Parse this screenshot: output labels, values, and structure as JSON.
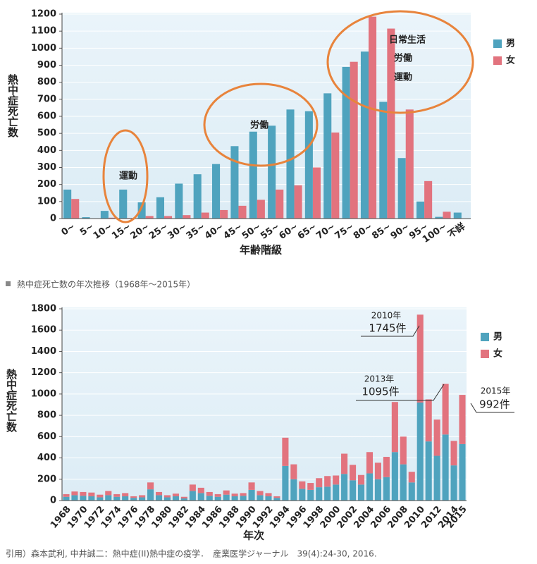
{
  "caption": "熱中症死亡数の年次推移（1968年～2015年）",
  "citation": "引用）森本武利, 中井誠二：熱中症(II)熱中症の疫学．　産業医学ジャーナル　39(4):24-30, 2016.",
  "chart_data": [
    {
      "type": "bar",
      "stacked": false,
      "ylabel": "熱中症死亡数",
      "xlabel": "年齢階級",
      "categories": [
        "0~",
        "5~",
        "10~",
        "15~",
        "20~",
        "25~",
        "30~",
        "35~",
        "40~",
        "45~",
        "50~",
        "55~",
        "60~",
        "65~",
        "70~",
        "75~",
        "80~",
        "85~",
        "90~",
        "95~",
        "100~",
        "不詳"
      ],
      "series": [
        {
          "name": "男",
          "color": "#4fa3be",
          "values": [
            170,
            8,
            45,
            170,
            95,
            125,
            205,
            260,
            320,
            425,
            510,
            545,
            640,
            630,
            735,
            890,
            980,
            685,
            355,
            100,
            10,
            35
          ]
        },
        {
          "name": "女",
          "color": "#e2737e",
          "values": [
            115,
            0,
            5,
            3,
            15,
            15,
            20,
            35,
            50,
            75,
            110,
            170,
            195,
            300,
            505,
            920,
            1185,
            1115,
            640,
            220,
            40,
            0
          ]
        }
      ],
      "ylim": [
        0,
        1200
      ],
      "yticks": [
        0,
        100,
        200,
        300,
        400,
        500,
        600,
        700,
        800,
        900,
        1000,
        1100,
        1200
      ],
      "grid": true,
      "legend": "right",
      "annotations": [
        "運動",
        "労働",
        "日常生活",
        "労働",
        "運動"
      ]
    },
    {
      "type": "bar",
      "stacked": true,
      "ylabel": "熱中症死亡数",
      "xlabel": "年次",
      "categories": [
        "1968",
        null,
        "1970",
        null,
        "1972",
        null,
        "1974",
        null,
        "1976",
        null,
        "1978",
        null,
        "1980",
        null,
        "1982",
        null,
        "1984",
        null,
        "1986",
        null,
        "1988",
        null,
        "1990",
        null,
        "1992",
        null,
        "1994",
        null,
        "1996",
        null,
        "1998",
        null,
        "2000",
        null,
        "2002",
        null,
        "2004",
        null,
        "2006",
        null,
        "2008",
        null,
        "2010",
        null,
        "2012",
        null,
        "2014",
        "2015"
      ],
      "series": [
        {
          "name": "男",
          "color": "#4fa3be",
          "values": [
            35,
            50,
            45,
            40,
            30,
            50,
            35,
            40,
            25,
            30,
            105,
            50,
            30,
            40,
            20,
            90,
            70,
            45,
            35,
            55,
            40,
            45,
            100,
            50,
            40,
            25,
            325,
            200,
            110,
            100,
            125,
            130,
            150,
            250,
            190,
            150,
            255,
            200,
            220,
            455,
            340,
            170,
            920,
            555,
            420,
            620,
            330,
            530
          ]
        },
        {
          "name": "女",
          "color": "#e2737e",
          "values": [
            25,
            35,
            35,
            35,
            25,
            40,
            25,
            30,
            15,
            20,
            65,
            30,
            20,
            25,
            15,
            60,
            50,
            35,
            25,
            40,
            25,
            25,
            70,
            40,
            30,
            15,
            265,
            140,
            70,
            65,
            85,
            100,
            85,
            190,
            145,
            90,
            200,
            155,
            190,
            470,
            260,
            100,
            825,
            395,
            340,
            475,
            230,
            462
          ]
        }
      ],
      "ylim": [
        0,
        1800
      ],
      "yticks": [
        0,
        200,
        400,
        600,
        800,
        1000,
        1200,
        1400,
        1600,
        1800
      ],
      "grid": true,
      "legend": "right",
      "annotations": [
        "2010年",
        "1745件",
        "2013年",
        "1095件",
        "2015年",
        "992件"
      ]
    }
  ]
}
